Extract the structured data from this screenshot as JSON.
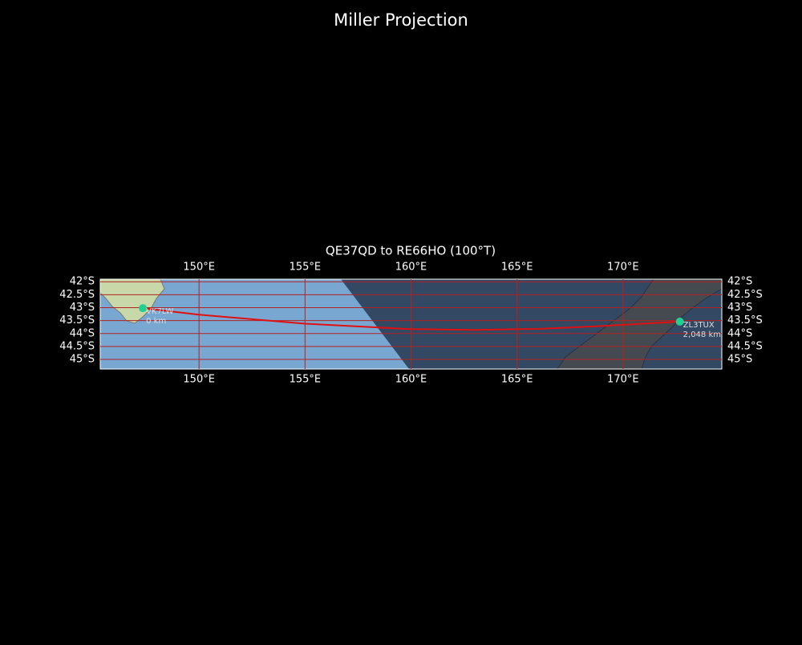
{
  "header": {
    "title": "Miller Projection"
  },
  "map": {
    "type": "map",
    "subtitle": "QE37QD to RE66HO (100°T)",
    "xlim": [
      145.34,
      174.66
    ],
    "ylim": [
      -45.37,
      -41.9
    ],
    "xticks": [
      {
        "value": 150,
        "label": "150°E"
      },
      {
        "value": 155,
        "label": "155°E"
      },
      {
        "value": 160,
        "label": "160°E"
      },
      {
        "value": 165,
        "label": "165°E"
      },
      {
        "value": 170,
        "label": "170°E"
      }
    ],
    "yticks": [
      {
        "value": -42,
        "label": "42°S"
      },
      {
        "value": -42.5,
        "label": "42.5°S"
      },
      {
        "value": -43,
        "label": "43°S"
      },
      {
        "value": -43.5,
        "label": "43.5°S"
      },
      {
        "value": -44,
        "label": "44°S"
      },
      {
        "value": -44.5,
        "label": "44.5°S"
      },
      {
        "value": -45,
        "label": "45°S"
      }
    ],
    "grid": true,
    "grid_color": "#b22222",
    "path": {
      "color": "#e01010",
      "lon": [
        147.35,
        150,
        155,
        160,
        163,
        166,
        169,
        172.68
      ],
      "lat": [
        -43.02,
        -43.27,
        -43.62,
        -43.83,
        -43.86,
        -43.82,
        -43.71,
        -43.54
      ]
    },
    "marker_color": "#20d090",
    "stations": [
      {
        "name": "VK7LW",
        "distance": "0 km",
        "lon": 147.35,
        "lat": -43.02
      },
      {
        "name": "ZL3TUX",
        "distance": "2,048 km",
        "lon": 172.68,
        "lat": -43.54
      }
    ]
  }
}
